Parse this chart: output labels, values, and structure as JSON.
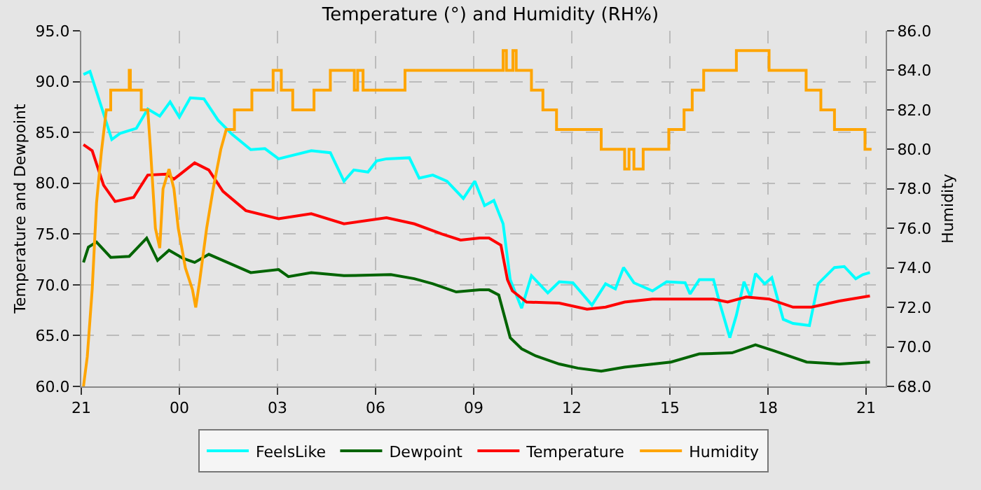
{
  "chart_data": {
    "type": "line",
    "title": "Temperature (°) and Humidity (RH%)",
    "ylabel": "Temperature and Dewpoint",
    "y2label": "Humidity",
    "xlim": [
      "2000-01-01T21:00",
      "2000-01-02T21:36"
    ],
    "xticks": [
      {
        "value": "2000-01-01T21:00",
        "label": "21"
      },
      {
        "value": "2000-01-02T00:00",
        "label": "00"
      },
      {
        "value": "2000-01-02T03:00",
        "label": "03"
      },
      {
        "value": "2000-01-02T06:00",
        "label": "06"
      },
      {
        "value": "2000-01-02T09:00",
        "label": "09"
      },
      {
        "value": "2000-01-02T12:00",
        "label": "12"
      },
      {
        "value": "2000-01-02T15:00",
        "label": "15"
      },
      {
        "value": "2000-01-02T18:00",
        "label": "18"
      },
      {
        "value": "2000-01-02T21:00",
        "label": "21"
      }
    ],
    "ylim": [
      60,
      95
    ],
    "yticks": [
      {
        "value": 60,
        "label": "60.0"
      },
      {
        "value": 65,
        "label": "65.0"
      },
      {
        "value": 70,
        "label": "70.0"
      },
      {
        "value": 75,
        "label": "75.0"
      },
      {
        "value": 80,
        "label": "80.0"
      },
      {
        "value": 85,
        "label": "85.0"
      },
      {
        "value": 90,
        "label": "90.0"
      },
      {
        "value": 95,
        "label": "95.0"
      }
    ],
    "y2lim": [
      68,
      86
    ],
    "y2ticks": [
      {
        "value": 68,
        "label": "68.0"
      },
      {
        "value": 70,
        "label": "70.0"
      },
      {
        "value": 72,
        "label": "72.0"
      },
      {
        "value": 74,
        "label": "74.0"
      },
      {
        "value": 76,
        "label": "76.0"
      },
      {
        "value": 78,
        "label": "78.0"
      },
      {
        "value": 80,
        "label": "80.0"
      },
      {
        "value": 82,
        "label": "82.0"
      },
      {
        "value": 84,
        "label": "84.0"
      },
      {
        "value": 86,
        "label": "86.0"
      }
    ],
    "grid": true,
    "legend": "bottom",
    "marker": "none",
    "line_style": "solid",
    "series": [
      {
        "name": "FeelsLike",
        "color": "#00ffff",
        "x": [
          "2000-01-01T21:04",
          "2000-01-01T21:16",
          "2000-01-01T21:37",
          "2000-01-01T21:56",
          "2000-01-01T22:11",
          "2000-01-01T22:41",
          "2000-01-01T23:02",
          "2000-01-01T23:24",
          "2000-01-01T23:43",
          "2000-01-02T00:00",
          "2000-01-02T00:20",
          "2000-01-02T00:45",
          "2000-01-02T01:11",
          "2000-01-02T01:37",
          "2000-01-02T02:11",
          "2000-01-02T02:37",
          "2000-01-02T03:02",
          "2000-01-02T04:02",
          "2000-01-02T04:37",
          "2000-01-02T05:02",
          "2000-01-02T05:20",
          "2000-01-02T05:46",
          "2000-01-02T06:02",
          "2000-01-02T06:20",
          "2000-01-02T07:02",
          "2000-01-02T07:20",
          "2000-01-02T07:45",
          "2000-01-02T08:11",
          "2000-01-02T08:41",
          "2000-01-02T09:02",
          "2000-01-02T09:20",
          "2000-01-02T09:37",
          "2000-01-02T09:54",
          "2000-01-02T10:07",
          "2000-01-02T10:28",
          "2000-01-02T10:46",
          "2000-01-02T11:16",
          "2000-01-02T11:37",
          "2000-01-02T12:02",
          "2000-01-02T12:37",
          "2000-01-02T13:02",
          "2000-01-02T13:20",
          "2000-01-02T13:35",
          "2000-01-02T13:54",
          "2000-01-02T14:28",
          "2000-01-02T14:54",
          "2000-01-02T15:28",
          "2000-01-02T15:37",
          "2000-01-02T15:54",
          "2000-01-02T16:20",
          "2000-01-02T16:32",
          "2000-01-02T16:50",
          "2000-01-02T17:02",
          "2000-01-02T17:16",
          "2000-01-02T17:28",
          "2000-01-02T17:37",
          "2000-01-02T17:54",
          "2000-01-02T18:07",
          "2000-01-02T18:28",
          "2000-01-02T18:46",
          "2000-01-02T19:16",
          "2000-01-02T19:32",
          "2000-01-02T20:02",
          "2000-01-02T20:20",
          "2000-01-02T20:41",
          "2000-01-02T20:54",
          "2000-01-02T21:07"
        ],
        "values": [
          90.7,
          91.0,
          87.5,
          84.3,
          84.9,
          85.4,
          87.3,
          86.6,
          88.0,
          86.5,
          88.4,
          88.3,
          86.2,
          84.8,
          83.3,
          83.4,
          82.4,
          83.2,
          83.0,
          80.2,
          81.3,
          81.1,
          82.2,
          82.4,
          82.5,
          80.5,
          80.8,
          80.2,
          78.5,
          80.2,
          77.8,
          78.3,
          76.0,
          70.5,
          67.7,
          70.9,
          69.2,
          70.3,
          70.2,
          68.0,
          70.1,
          69.6,
          71.7,
          70.2,
          69.4,
          70.3,
          70.2,
          69.1,
          70.5,
          70.5,
          68.1,
          64.8,
          67.0,
          70.3,
          68.8,
          71.1,
          70.1,
          70.7,
          66.6,
          66.2,
          66.0,
          70.1,
          71.7,
          71.8,
          70.6,
          71.0,
          71.2
        ]
      },
      {
        "name": "Dewpoint",
        "color": "#006400",
        "x": [
          "2000-01-01T21:04",
          "2000-01-01T21:13",
          "2000-01-01T21:28",
          "2000-01-01T21:54",
          "2000-01-01T22:28",
          "2000-01-01T23:00",
          "2000-01-01T23:20",
          "2000-01-01T23:41",
          "2000-01-02T00:07",
          "2000-01-02T00:28",
          "2000-01-02T00:54",
          "2000-01-02T01:37",
          "2000-01-02T02:11",
          "2000-01-02T03:02",
          "2000-01-02T03:20",
          "2000-01-02T04:02",
          "2000-01-02T05:02",
          "2000-01-02T06:28",
          "2000-01-02T07:11",
          "2000-01-02T07:45",
          "2000-01-02T08:28",
          "2000-01-02T09:11",
          "2000-01-02T09:28",
          "2000-01-02T09:46",
          "2000-01-02T10:07",
          "2000-01-02T10:28",
          "2000-01-02T10:54",
          "2000-01-02T11:37",
          "2000-01-02T12:11",
          "2000-01-02T12:54",
          "2000-01-02T13:37",
          "2000-01-02T15:02",
          "2000-01-02T15:54",
          "2000-01-02T16:54",
          "2000-01-02T17:37",
          "2000-01-02T18:11",
          "2000-01-02T19:11",
          "2000-01-02T20:11",
          "2000-01-02T21:07"
        ],
        "values": [
          72.2,
          73.7,
          74.2,
          72.7,
          72.8,
          74.6,
          72.4,
          73.4,
          72.6,
          72.2,
          73.0,
          72.0,
          71.2,
          71.5,
          70.8,
          71.2,
          70.9,
          71.0,
          70.6,
          70.1,
          69.3,
          69.5,
          69.5,
          69.0,
          64.8,
          63.7,
          63.0,
          62.2,
          61.8,
          61.5,
          61.9,
          62.4,
          63.2,
          63.3,
          64.1,
          63.5,
          62.4,
          62.2,
          62.4
        ]
      },
      {
        "name": "Temperature",
        "color": "#ff0000",
        "x": [
          "2000-01-01T21:04",
          "2000-01-01T21:20",
          "2000-01-01T21:41",
          "2000-01-01T22:02",
          "2000-01-01T22:36",
          "2000-01-01T23:02",
          "2000-01-01T23:36",
          "2000-01-01T23:50",
          "2000-01-02T00:28",
          "2000-01-02T00:54",
          "2000-01-02T01:20",
          "2000-01-02T02:02",
          "2000-01-02T03:02",
          "2000-01-02T04:02",
          "2000-01-02T05:02",
          "2000-01-02T06:20",
          "2000-01-02T07:11",
          "2000-01-02T08:02",
          "2000-01-02T08:36",
          "2000-01-02T09:11",
          "2000-01-02T09:28",
          "2000-01-02T09:50",
          "2000-01-02T10:02",
          "2000-01-02T10:11",
          "2000-01-02T10:37",
          "2000-01-02T11:37",
          "2000-01-02T12:28",
          "2000-01-02T13:02",
          "2000-01-02T13:37",
          "2000-01-02T14:28",
          "2000-01-02T16:20",
          "2000-01-02T16:46",
          "2000-01-02T17:20",
          "2000-01-02T18:02",
          "2000-01-02T18:46",
          "2000-01-02T19:20",
          "2000-01-02T20:11",
          "2000-01-02T21:07"
        ],
        "values": [
          83.8,
          83.2,
          79.8,
          78.2,
          78.6,
          80.8,
          80.9,
          80.4,
          82.0,
          81.3,
          79.2,
          77.3,
          76.5,
          77.0,
          76.0,
          76.6,
          76.0,
          75.0,
          74.4,
          74.6,
          74.6,
          73.9,
          70.5,
          69.4,
          68.3,
          68.2,
          67.6,
          67.8,
          68.3,
          68.6,
          68.6,
          68.3,
          68.8,
          68.6,
          67.8,
          67.8,
          68.4,
          68.9
        ]
      },
      {
        "name": "Humidity",
        "color": "#ffa500",
        "axis": "y2",
        "x": [
          "2000-01-01T21:04",
          "2000-01-01T21:11",
          "2000-01-01T21:20",
          "2000-01-01T21:28",
          "2000-01-01T21:37",
          "2000-01-01T21:46",
          "2000-01-01T21:54",
          "2000-01-01T21:54",
          "2000-01-01T22:28",
          "2000-01-01T22:28",
          "2000-01-01T22:30",
          "2000-01-01T22:30",
          "2000-01-01T22:50",
          "2000-01-01T22:50",
          "2000-01-01T23:02",
          "2000-01-01T23:07",
          "2000-01-01T23:16",
          "2000-01-01T23:24",
          "2000-01-01T23:30",
          "2000-01-01T23:41",
          "2000-01-01T23:50",
          "2000-01-01T23:58",
          "2000-01-02T00:11",
          "2000-01-02T00:24",
          "2000-01-02T00:30",
          "2000-01-02T00:37",
          "2000-01-02T00:50",
          "2000-01-02T01:02",
          "2000-01-02T01:16",
          "2000-01-02T01:26",
          "2000-01-02T01:41",
          "2000-01-02T01:41",
          "2000-01-02T02:13",
          "2000-01-02T02:13",
          "2000-01-02T02:52",
          "2000-01-02T02:52",
          "2000-01-02T03:07",
          "2000-01-02T03:07",
          "2000-01-02T03:28",
          "2000-01-02T03:28",
          "2000-01-02T04:07",
          "2000-01-02T04:07",
          "2000-01-02T04:37",
          "2000-01-02T04:37",
          "2000-01-02T05:21",
          "2000-01-02T05:21",
          "2000-01-02T05:27",
          "2000-01-02T05:27",
          "2000-01-02T05:37",
          "2000-01-02T05:37",
          "2000-01-02T06:54",
          "2000-01-02T06:54",
          "2000-01-02T09:54",
          "2000-01-02T09:54",
          "2000-01-02T10:00",
          "2000-01-02T10:00",
          "2000-01-02T10:12",
          "2000-01-02T10:12",
          "2000-01-02T10:18",
          "2000-01-02T10:18",
          "2000-01-02T10:46",
          "2000-01-02T10:46",
          "2000-01-02T11:07",
          "2000-01-02T11:07",
          "2000-01-02T11:32",
          "2000-01-02T11:32",
          "2000-01-02T12:54",
          "2000-01-02T12:54",
          "2000-01-02T13:37",
          "2000-01-02T13:37",
          "2000-01-02T13:45",
          "2000-01-02T13:45",
          "2000-01-02T13:54",
          "2000-01-02T13:54",
          "2000-01-02T14:11",
          "2000-01-02T14:11",
          "2000-01-02T14:58",
          "2000-01-02T14:58",
          "2000-01-02T15:26",
          "2000-01-02T15:26",
          "2000-01-02T15:41",
          "2000-01-02T15:41",
          "2000-01-02T16:02",
          "2000-01-02T16:02",
          "2000-01-02T17:02",
          "2000-01-02T17:02",
          "2000-01-02T18:02",
          "2000-01-02T18:02",
          "2000-01-02T19:10",
          "2000-01-02T19:10",
          "2000-01-02T19:37",
          "2000-01-02T19:37",
          "2000-01-02T20:02",
          "2000-01-02T20:02",
          "2000-01-02T20:58",
          "2000-01-02T20:58",
          "2000-01-02T21:10"
        ],
        "values": [
          68,
          69.5,
          72.9,
          77.3,
          79.9,
          82,
          82,
          83,
          83,
          84,
          84,
          83,
          83,
          82,
          82,
          80,
          76,
          75,
          78,
          79,
          78,
          76,
          74,
          72.9,
          72,
          73.3,
          76,
          78,
          80,
          81,
          81,
          82,
          82,
          83,
          83,
          84,
          84,
          83,
          83,
          82,
          82,
          83,
          83,
          84,
          84,
          83,
          83,
          84,
          84,
          83,
          83,
          84,
          84,
          85,
          85,
          84,
          84,
          85,
          85,
          84,
          84,
          83,
          83,
          82,
          82,
          81,
          81,
          80,
          80,
          79,
          79,
          80,
          80,
          79,
          79,
          80,
          80,
          81,
          81,
          82,
          82,
          83,
          83,
          84,
          84,
          85,
          85,
          84,
          84,
          83,
          83,
          82,
          82,
          81,
          81,
          80,
          80
        ]
      }
    ]
  }
}
